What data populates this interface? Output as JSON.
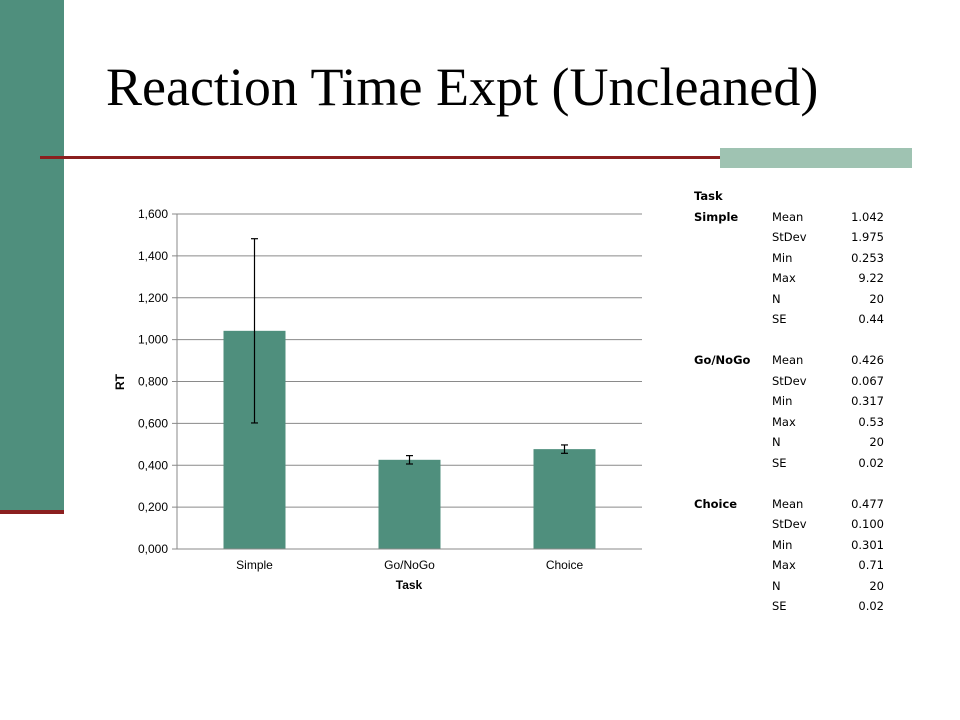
{
  "slide": {
    "title": "Reaction Time Expt (Uncleaned)"
  },
  "colors": {
    "bar": "#4f8f7d",
    "accent": "#8b1f1f",
    "accent_light": "#9fc3b2"
  },
  "chart_data": {
    "type": "bar",
    "categories": [
      "Simple",
      "Go/NoGo",
      "Choice"
    ],
    "values": [
      1.042,
      0.426,
      0.477
    ],
    "error_bars": [
      0.44,
      0.02,
      0.02
    ],
    "xlabel": "Task",
    "ylabel": "RT",
    "ylim": [
      0,
      1.6
    ],
    "yticks": [
      0,
      0.2,
      0.4,
      0.6,
      0.8,
      1.0,
      1.2,
      1.4,
      1.6
    ],
    "ytick_labels": [
      "0,000",
      "0,200",
      "0,400",
      "0,600",
      "0,800",
      "1,000",
      "1,200",
      "1,400",
      "1,600"
    ],
    "grid": true,
    "legend": "none"
  },
  "stats_table": {
    "header": "Task",
    "groups": [
      {
        "task": "Simple",
        "rows": [
          {
            "stat": "Mean",
            "value": "1.042"
          },
          {
            "stat": "StDev",
            "value": "1.975"
          },
          {
            "stat": "Min",
            "value": "0.253"
          },
          {
            "stat": "Max",
            "value": "9.22"
          },
          {
            "stat": "N",
            "value": "20"
          },
          {
            "stat": "SE",
            "value": "0.44"
          }
        ]
      },
      {
        "task": "Go/NoGo",
        "rows": [
          {
            "stat": "Mean",
            "value": "0.426"
          },
          {
            "stat": "StDev",
            "value": "0.067"
          },
          {
            "stat": "Min",
            "value": "0.317"
          },
          {
            "stat": "Max",
            "value": "0.53"
          },
          {
            "stat": "N",
            "value": "20"
          },
          {
            "stat": "SE",
            "value": "0.02"
          }
        ]
      },
      {
        "task": "Choice",
        "rows": [
          {
            "stat": "Mean",
            "value": "0.477"
          },
          {
            "stat": "StDev",
            "value": "0.100"
          },
          {
            "stat": "Min",
            "value": "0.301"
          },
          {
            "stat": "Max",
            "value": "0.71"
          },
          {
            "stat": "N",
            "value": "20"
          },
          {
            "stat": "SE",
            "value": "0.02"
          }
        ]
      }
    ]
  }
}
